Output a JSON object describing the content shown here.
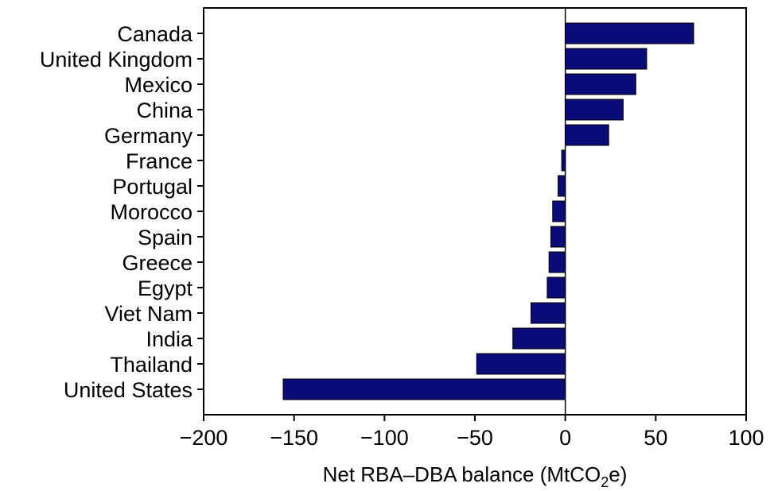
{
  "chart_data": {
    "type": "bar",
    "orientation": "horizontal",
    "categories": [
      "Canada",
      "United Kingdom",
      "Mexico",
      "China",
      "Germany",
      "France",
      "Portugal",
      "Morocco",
      "Spain",
      "Greece",
      "Egypt",
      "Viet Nam",
      "India",
      "Thailand",
      "United States"
    ],
    "values": [
      71,
      45,
      39,
      32,
      24,
      -2,
      -4,
      -7,
      -8,
      -9,
      -10,
      -19,
      -29,
      -49,
      -156
    ],
    "xlabel_parts": {
      "before": "Net RBA–DBA balance (MtCO",
      "sub": "2",
      "after": "e)"
    },
    "ylabel": "",
    "xlim": [
      -200,
      100
    ],
    "xticks": [
      -200,
      -150,
      -100,
      -50,
      0,
      50,
      100
    ],
    "xtick_labels": [
      "−200",
      "−150",
      "−100",
      "−50",
      "0",
      "50",
      "100"
    ],
    "grid": false,
    "bar_color": "#0a0a78",
    "bar_edge_color": "#000000"
  }
}
